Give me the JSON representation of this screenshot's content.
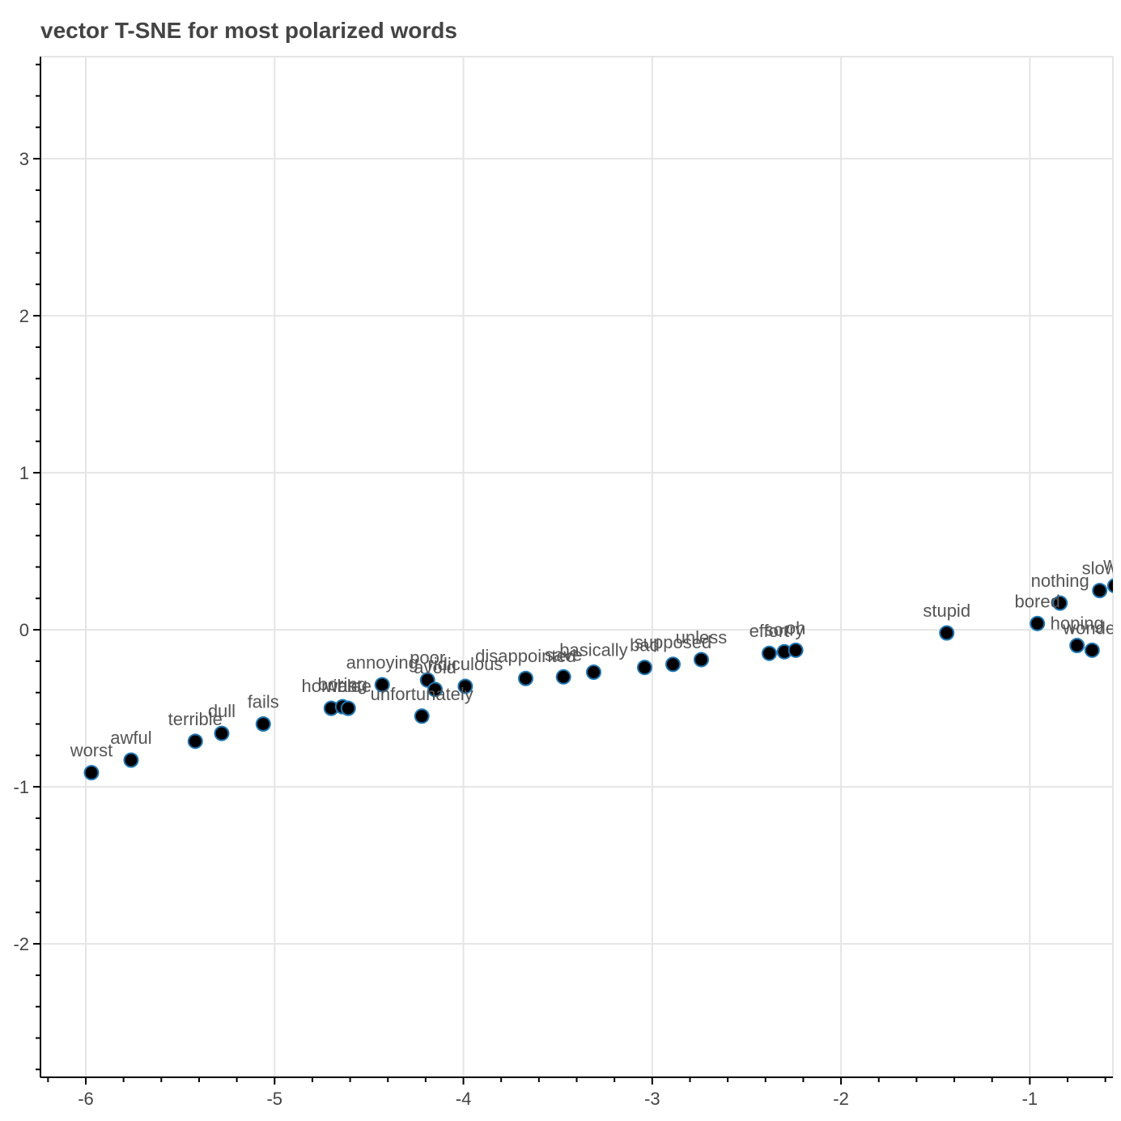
{
  "chart_data": {
    "type": "scatter",
    "title": "vector T-SNE for most polarized words",
    "xlabel": "",
    "ylabel": "",
    "xlim": [
      -6.24,
      -0.56
    ],
    "ylim": [
      -2.85,
      3.65
    ],
    "xticks": [
      -6,
      -5,
      -4,
      -3,
      -2,
      -1
    ],
    "yticks": [
      -2,
      -1,
      0,
      1,
      2,
      3
    ],
    "xtick_labels": [
      "-6",
      "-5",
      "-4",
      "-3",
      "-2",
      "-1"
    ],
    "ytick_labels": [
      "-2",
      "-1",
      "0",
      "1",
      "2",
      "3"
    ],
    "grid": true,
    "marker_fill": "#000000",
    "marker_edge": "#1f77b4",
    "points": [
      {
        "label": "worst",
        "x": -5.97,
        "y": -0.91
      },
      {
        "label": "awful",
        "x": -5.76,
        "y": -0.83
      },
      {
        "label": "terrible",
        "x": -5.42,
        "y": -0.71
      },
      {
        "label": "dull",
        "x": -5.28,
        "y": -0.66
      },
      {
        "label": "fails",
        "x": -5.06,
        "y": -0.6
      },
      {
        "label": "horrible",
        "x": -4.7,
        "y": -0.5
      },
      {
        "label": "boring",
        "x": -4.64,
        "y": -0.49
      },
      {
        "label": "waste",
        "x": -4.61,
        "y": -0.5
      },
      {
        "label": "annoying",
        "x": -4.43,
        "y": -0.35
      },
      {
        "label": "unfortunately",
        "x": -4.22,
        "y": -0.55
      },
      {
        "label": "poor",
        "x": -4.19,
        "y": -0.32
      },
      {
        "label": "avoid",
        "x": -4.15,
        "y": -0.38
      },
      {
        "label": "ridiculous",
        "x": -3.99,
        "y": -0.36
      },
      {
        "label": "disappointed",
        "x": -3.67,
        "y": -0.31
      },
      {
        "label": "save",
        "x": -3.47,
        "y": -0.3
      },
      {
        "label": "basically",
        "x": -3.31,
        "y": -0.27
      },
      {
        "label": "bad",
        "x": -3.04,
        "y": -0.24
      },
      {
        "label": "supposed",
        "x": -2.89,
        "y": -0.22
      },
      {
        "label": "unless",
        "x": -2.74,
        "y": -0.19
      },
      {
        "label": "effort",
        "x": -2.38,
        "y": -0.15
      },
      {
        "label": "sorry",
        "x": -2.3,
        "y": -0.14
      },
      {
        "label": "oh",
        "x": -2.24,
        "y": -0.13
      },
      {
        "label": "stupid",
        "x": -1.44,
        "y": -0.02
      },
      {
        "label": "bored",
        "x": -0.96,
        "y": 0.04
      },
      {
        "label": "nothing",
        "x": -0.84,
        "y": 0.17
      },
      {
        "label": "hoping",
        "x": -0.75,
        "y": -0.1
      },
      {
        "label": "wonder",
        "x": -0.67,
        "y": -0.13
      },
      {
        "label": "slow",
        "x": -0.63,
        "y": 0.25
      },
      {
        "label": "we",
        "x": -0.55,
        "y": 0.28
      }
    ]
  }
}
